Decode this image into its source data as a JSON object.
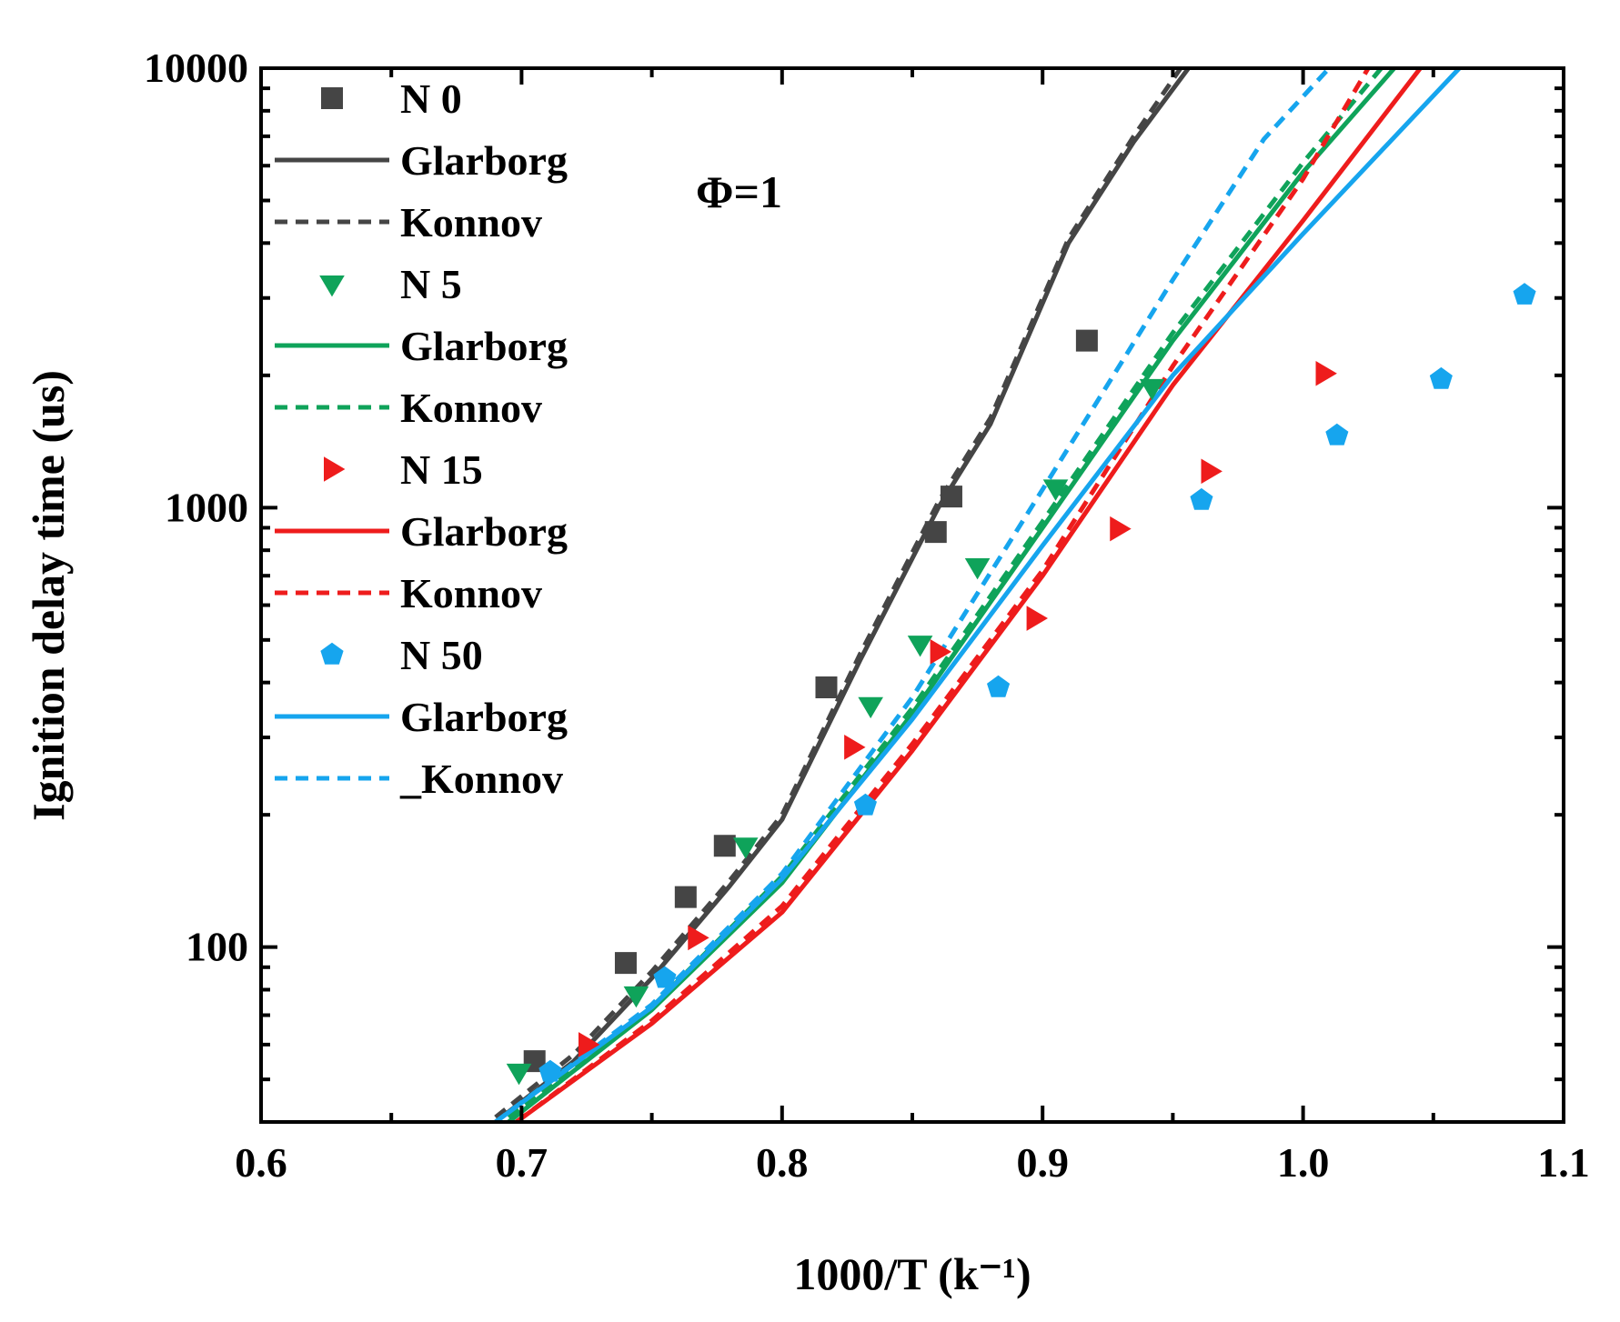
{
  "chart_data": {
    "type": "scatter",
    "xlabel": "1000/T (k⁻¹)",
    "ylabel": "Ignition delay time (us)",
    "xlim": [
      0.6,
      1.1
    ],
    "ylim": [
      40,
      10000
    ],
    "y_scale": "log",
    "x_ticks": [
      "0.6",
      "0.7",
      "0.8",
      "0.9",
      "1.0",
      "1.1"
    ],
    "y_ticks": [
      "100",
      "1000",
      "10000"
    ],
    "annotation": "Φ=1",
    "legend_position": "top-left",
    "colors": {
      "N0": "#454545",
      "N5": "#0fa35a",
      "N15": "#ee1c1c",
      "N50": "#16a5ee"
    },
    "series": [
      {
        "name": "N 0",
        "kind": "points",
        "marker": "square",
        "color": "#454545",
        "x": [
          0.705,
          0.74,
          0.763,
          0.778,
          0.817,
          0.859,
          0.865,
          0.917
        ],
        "y": [
          55,
          92,
          130,
          170,
          390,
          880,
          1060,
          2400
        ]
      },
      {
        "name": "Glarborg",
        "kind": "line",
        "dash": "solid",
        "color": "#454545",
        "x": [
          0.69,
          0.72,
          0.75,
          0.78,
          0.8,
          0.83,
          0.86,
          0.88,
          0.91,
          0.935,
          0.956
        ],
        "y": [
          40,
          55,
          85,
          138,
          195,
          450,
          1000,
          1550,
          4000,
          6800,
          10000
        ]
      },
      {
        "name": "Konnov",
        "kind": "line",
        "dash": "dashed",
        "color": "#454545",
        "x": [
          0.69,
          0.72,
          0.75,
          0.78,
          0.8,
          0.83,
          0.86,
          0.88,
          0.91,
          0.935,
          0.953
        ],
        "y": [
          41,
          57,
          88,
          142,
          200,
          465,
          1030,
          1600,
          4100,
          7000,
          10000
        ]
      },
      {
        "name": "N 5",
        "kind": "points",
        "marker": "triangle-down",
        "color": "#0fa35a",
        "x": [
          0.699,
          0.744,
          0.786,
          0.834,
          0.853,
          0.875,
          0.905,
          0.942
        ],
        "y": [
          52,
          78,
          170,
          355,
          490,
          735,
          1110,
          1880
        ]
      },
      {
        "name": "Glarborg",
        "kind": "line",
        "dash": "solid",
        "color": "#0fa35a",
        "x": [
          0.695,
          0.75,
          0.8,
          0.85,
          0.9,
          0.95,
          1.0,
          1.035
        ],
        "y": [
          40,
          72,
          140,
          340,
          900,
          2400,
          5800,
          10000
        ]
      },
      {
        "name": "Konnov",
        "kind": "line",
        "dash": "dashed",
        "color": "#0fa35a",
        "x": [
          0.695,
          0.75,
          0.8,
          0.85,
          0.9,
          0.95,
          1.0,
          1.03
        ],
        "y": [
          41,
          73,
          145,
          350,
          930,
          2500,
          6100,
          10000
        ]
      },
      {
        "name": "N 15",
        "kind": "points",
        "marker": "triangle-right",
        "color": "#ee1c1c",
        "x": [
          0.725,
          0.767,
          0.827,
          0.86,
          0.897,
          0.929,
          0.964,
          1.008
        ],
        "y": [
          60,
          105,
          285,
          470,
          560,
          895,
          1210,
          2020
        ]
      },
      {
        "name": "Glarborg",
        "kind": "line",
        "dash": "solid",
        "color": "#ee1c1c",
        "x": [
          0.698,
          0.75,
          0.8,
          0.85,
          0.9,
          0.95,
          1.0,
          1.045
        ],
        "y": [
          40,
          67,
          120,
          280,
          700,
          1900,
          4500,
          10000
        ]
      },
      {
        "name": "Konnov",
        "kind": "line",
        "dash": "dashed",
        "color": "#ee1c1c",
        "x": [
          0.698,
          0.75,
          0.8,
          0.85,
          0.9,
          0.95,
          1.0,
          1.025
        ],
        "y": [
          40,
          68,
          124,
          290,
          720,
          2100,
          5600,
          10000
        ]
      },
      {
        "name": "N 50",
        "kind": "points",
        "marker": "pentagon",
        "color": "#16a5ee",
        "x": [
          0.711,
          0.755,
          0.832,
          0.883,
          0.961,
          1.013,
          1.053,
          1.085
        ],
        "y": [
          52,
          85,
          210,
          390,
          1040,
          1460,
          1960,
          3050
        ]
      },
      {
        "name": "Glarborg",
        "kind": "line",
        "dash": "solid",
        "color": "#16a5ee",
        "x": [
          0.69,
          0.75,
          0.8,
          0.85,
          0.9,
          0.95,
          1.0,
          1.06
        ],
        "y": [
          40,
          73,
          143,
          330,
          820,
          2000,
          4200,
          10000
        ]
      },
      {
        "name": "_Konnov",
        "kind": "line",
        "dash": "dashed",
        "color": "#16a5ee",
        "x": [
          0.69,
          0.75,
          0.8,
          0.85,
          0.9,
          0.95,
          0.985,
          1.01
        ],
        "y": [
          40,
          74,
          147,
          370,
          1100,
          3300,
          6900,
          10000
        ]
      }
    ]
  }
}
